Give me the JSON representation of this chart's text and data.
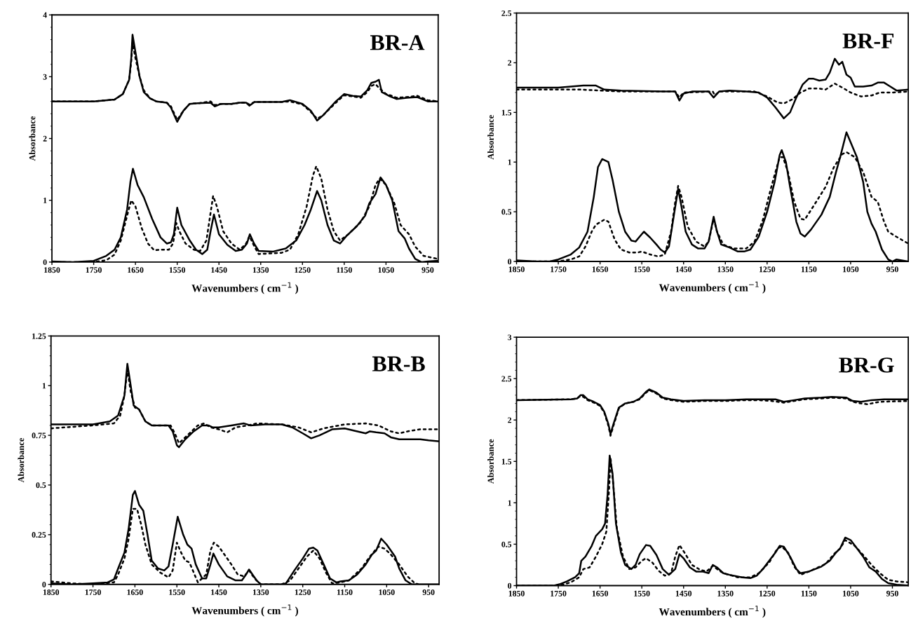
{
  "chart_data": [
    {
      "type": "line",
      "title": "BR-A",
      "xlabel": "Wavenumbers ( cm$^{−1}$ )",
      "ylabel": "Absorbance",
      "xlim": [
        1850,
        925
      ],
      "xticks": [
        1850,
        1750,
        1650,
        1550,
        1450,
        1350,
        1250,
        1150,
        1050,
        950
      ],
      "ylim": [
        0,
        4
      ],
      "yticks": [
        0,
        1,
        2,
        3,
        4
      ],
      "series": [
        {
          "color": "#000000",
          "line_style": "solid",
          "x": [
            1850,
            1750,
            1700,
            1680,
            1665,
            1660,
            1657,
            1650,
            1640,
            1630,
            1615,
            1600,
            1575,
            1565,
            1550,
            1535,
            1520,
            1500,
            1470,
            1460,
            1445,
            1420,
            1400,
            1385,
            1377,
            1365,
            1300,
            1280,
            1250,
            1230,
            1215,
            1200,
            1170,
            1150,
            1130,
            1110,
            1095,
            1085,
            1075,
            1067,
            1060,
            1040,
            1025,
            1000,
            975,
            950,
            925
          ],
          "values": [
            2.6,
            2.6,
            2.63,
            2.72,
            2.95,
            3.3,
            3.68,
            3.4,
            3.0,
            2.75,
            2.65,
            2.6,
            2.58,
            2.5,
            2.27,
            2.45,
            2.56,
            2.57,
            2.58,
            2.52,
            2.56,
            2.56,
            2.58,
            2.58,
            2.53,
            2.59,
            2.59,
            2.62,
            2.56,
            2.45,
            2.29,
            2.38,
            2.6,
            2.72,
            2.69,
            2.68,
            2.78,
            2.9,
            2.92,
            2.95,
            2.75,
            2.68,
            2.64,
            2.66,
            2.67,
            2.6,
            2.6
          ]
        },
        {
          "color": "#000000",
          "line_style": "dotted",
          "x": [
            1850,
            1750,
            1700,
            1680,
            1665,
            1660,
            1657,
            1650,
            1640,
            1630,
            1615,
            1600,
            1575,
            1565,
            1550,
            1535,
            1520,
            1500,
            1470,
            1460,
            1445,
            1420,
            1400,
            1385,
            1377,
            1365,
            1300,
            1280,
            1250,
            1230,
            1215,
            1200,
            1170,
            1150,
            1130,
            1110,
            1095,
            1085,
            1075,
            1067,
            1050,
            1040,
            1025,
            1000,
            975,
            950,
            925
          ],
          "values": [
            2.6,
            2.6,
            2.63,
            2.72,
            2.95,
            3.25,
            3.55,
            3.3,
            3.0,
            2.78,
            2.65,
            2.6,
            2.58,
            2.52,
            2.3,
            2.45,
            2.56,
            2.57,
            2.6,
            2.54,
            2.56,
            2.56,
            2.58,
            2.58,
            2.55,
            2.59,
            2.59,
            2.6,
            2.55,
            2.43,
            2.32,
            2.38,
            2.58,
            2.7,
            2.68,
            2.66,
            2.75,
            2.85,
            2.88,
            2.82,
            2.72,
            2.7,
            2.66,
            2.67,
            2.69,
            2.62,
            2.6
          ]
        },
        {
          "color": "#000000",
          "line_style": "solid",
          "x": [
            1850,
            1800,
            1750,
            1720,
            1700,
            1685,
            1670,
            1662,
            1656,
            1645,
            1630,
            1610,
            1590,
            1575,
            1565,
            1558,
            1550,
            1540,
            1520,
            1505,
            1490,
            1478,
            1470,
            1462,
            1450,
            1430,
            1410,
            1395,
            1383,
            1376,
            1366,
            1355,
            1320,
            1290,
            1265,
            1245,
            1230,
            1215,
            1205,
            1190,
            1175,
            1160,
            1145,
            1120,
            1100,
            1090,
            1075,
            1063,
            1050,
            1035,
            1020,
            1005,
            995,
            980,
            965,
            950,
            925
          ],
          "values": [
            0.01,
            0,
            0.02,
            0.1,
            0.2,
            0.4,
            0.85,
            1.3,
            1.51,
            1.25,
            1.05,
            0.7,
            0.4,
            0.3,
            0.32,
            0.45,
            0.88,
            0.6,
            0.35,
            0.2,
            0.13,
            0.2,
            0.5,
            0.77,
            0.45,
            0.28,
            0.18,
            0.2,
            0.3,
            0.45,
            0.3,
            0.18,
            0.17,
            0.22,
            0.35,
            0.6,
            0.85,
            1.15,
            1.0,
            0.6,
            0.35,
            0.3,
            0.42,
            0.58,
            0.75,
            0.95,
            1.1,
            1.37,
            1.25,
            1.0,
            0.5,
            0.38,
            0.22,
            0.05,
            0,
            0.01,
            0.02
          ]
        },
        {
          "color": "#000000",
          "line_style": "dotted",
          "x": [
            1850,
            1750,
            1720,
            1700,
            1685,
            1670,
            1660,
            1650,
            1635,
            1620,
            1605,
            1590,
            1570,
            1560,
            1552,
            1545,
            1530,
            1510,
            1495,
            1480,
            1470,
            1464,
            1455,
            1440,
            1420,
            1400,
            1385,
            1377,
            1365,
            1355,
            1300,
            1280,
            1260,
            1240,
            1225,
            1217,
            1205,
            1190,
            1175,
            1160,
            1140,
            1110,
            1090,
            1075,
            1065,
            1050,
            1030,
            1015,
            995,
            980,
            960,
            925
          ],
          "values": [
            0,
            0,
            0.03,
            0.12,
            0.35,
            0.75,
            1.0,
            0.9,
            0.55,
            0.3,
            0.19,
            0.2,
            0.2,
            0.3,
            0.63,
            0.5,
            0.3,
            0.2,
            0.18,
            0.35,
            0.8,
            1.07,
            0.9,
            0.5,
            0.3,
            0.2,
            0.3,
            0.42,
            0.25,
            0.13,
            0.15,
            0.2,
            0.45,
            0.9,
            1.4,
            1.55,
            1.35,
            0.85,
            0.5,
            0.35,
            0.45,
            0.65,
            0.9,
            1.25,
            1.35,
            1.25,
            0.95,
            0.6,
            0.45,
            0.25,
            0.1,
            0.05
          ]
        }
      ]
    },
    {
      "type": "line",
      "title": "BR-F",
      "xlabel": "Wavenumbers ( cm$^{−1}$ )",
      "ylabel": "Absorbance",
      "xlim": [
        1850,
        912
      ],
      "xticks": [
        1850,
        1750,
        1650,
        1550,
        1450,
        1350,
        1250,
        1150,
        1050,
        950
      ],
      "ylim": [
        0,
        2.5
      ],
      "yticks": [
        0,
        0.5,
        1,
        1.5,
        2,
        2.5
      ],
      "series": [
        {
          "color": "#000000",
          "line_style": "solid",
          "x": [
            1850,
            1750,
            1720,
            1690,
            1660,
            1640,
            1600,
            1500,
            1470,
            1460,
            1450,
            1430,
            1390,
            1378,
            1365,
            1340,
            1300,
            1270,
            1250,
            1230,
            1210,
            1195,
            1180,
            1165,
            1150,
            1140,
            1125,
            1110,
            1100,
            1088,
            1078,
            1070,
            1060,
            1050,
            1040,
            1020,
            1000,
            985,
            970,
            955,
            940,
            912
          ],
          "values": [
            1.75,
            1.75,
            1.76,
            1.77,
            1.77,
            1.73,
            1.72,
            1.71,
            1.71,
            1.62,
            1.69,
            1.71,
            1.71,
            1.65,
            1.71,
            1.72,
            1.71,
            1.7,
            1.65,
            1.55,
            1.44,
            1.5,
            1.65,
            1.78,
            1.84,
            1.84,
            1.82,
            1.83,
            1.9,
            2.04,
            1.98,
            2.01,
            1.88,
            1.85,
            1.76,
            1.76,
            1.77,
            1.8,
            1.8,
            1.76,
            1.72,
            1.73
          ]
        },
        {
          "color": "#000000",
          "line_style": "dotted",
          "x": [
            1850,
            1700,
            1650,
            1600,
            1470,
            1460,
            1450,
            1380,
            1375,
            1365,
            1280,
            1250,
            1225,
            1210,
            1190,
            1170,
            1150,
            1125,
            1110,
            1088,
            1070,
            1050,
            1025,
            1000,
            980,
            950,
            912
          ],
          "values": [
            1.73,
            1.73,
            1.72,
            1.71,
            1.71,
            1.65,
            1.7,
            1.71,
            1.67,
            1.71,
            1.71,
            1.66,
            1.6,
            1.59,
            1.63,
            1.7,
            1.74,
            1.74,
            1.73,
            1.79,
            1.75,
            1.7,
            1.66,
            1.67,
            1.7,
            1.7,
            1.71
          ]
        },
        {
          "color": "#000000",
          "line_style": "solid",
          "x": [
            1850,
            1800,
            1770,
            1750,
            1720,
            1700,
            1680,
            1665,
            1655,
            1645,
            1630,
            1620,
            1605,
            1590,
            1575,
            1565,
            1555,
            1545,
            1530,
            1515,
            1505,
            1495,
            1485,
            1470,
            1463,
            1455,
            1445,
            1430,
            1415,
            1400,
            1390,
            1378,
            1370,
            1360,
            1340,
            1320,
            1305,
            1290,
            1270,
            1250,
            1232,
            1220,
            1215,
            1205,
            1195,
            1180,
            1170,
            1160,
            1145,
            1120,
            1100,
            1085,
            1075,
            1060,
            1050,
            1035,
            1020,
            1010,
            1000,
            990,
            975,
            960,
            950,
            940,
            912
          ],
          "values": [
            0.01,
            0,
            0,
            0.02,
            0.07,
            0.14,
            0.3,
            0.65,
            0.95,
            1.03,
            1.0,
            0.82,
            0.5,
            0.3,
            0.21,
            0.2,
            0.25,
            0.3,
            0.24,
            0.17,
            0.12,
            0.09,
            0.15,
            0.55,
            0.73,
            0.55,
            0.3,
            0.17,
            0.13,
            0.13,
            0.2,
            0.45,
            0.3,
            0.17,
            0.14,
            0.1,
            0.1,
            0.12,
            0.25,
            0.5,
            0.8,
            1.07,
            1.12,
            1.0,
            0.75,
            0.4,
            0.28,
            0.25,
            0.32,
            0.47,
            0.65,
            0.9,
            1.05,
            1.3,
            1.2,
            1.05,
            0.8,
            0.5,
            0.38,
            0.3,
            0.12,
            0.02,
            0,
            0.02,
            0
          ]
        },
        {
          "color": "#000000",
          "line_style": "dotted",
          "x": [
            1850,
            1750,
            1720,
            1700,
            1685,
            1670,
            1660,
            1640,
            1630,
            1615,
            1600,
            1580,
            1560,
            1550,
            1530,
            1510,
            1495,
            1480,
            1470,
            1463,
            1455,
            1440,
            1420,
            1400,
            1390,
            1378,
            1370,
            1355,
            1330,
            1300,
            1280,
            1260,
            1240,
            1220,
            1212,
            1200,
            1185,
            1170,
            1160,
            1140,
            1110,
            1090,
            1070,
            1060,
            1040,
            1020,
            1000,
            985,
            970,
            960,
            945,
            912
          ],
          "values": [
            0,
            0,
            0.02,
            0.05,
            0.15,
            0.3,
            0.37,
            0.42,
            0.4,
            0.22,
            0.12,
            0.09,
            0.09,
            0.1,
            0.07,
            0.05,
            0.07,
            0.3,
            0.6,
            0.76,
            0.65,
            0.35,
            0.2,
            0.15,
            0.2,
            0.43,
            0.3,
            0.17,
            0.13,
            0.13,
            0.2,
            0.42,
            0.75,
            1.05,
            1.05,
            0.9,
            0.6,
            0.43,
            0.42,
            0.55,
            0.75,
            0.95,
            1.08,
            1.1,
            1.05,
            0.9,
            0.65,
            0.6,
            0.4,
            0.3,
            0.26,
            0.18
          ]
        }
      ]
    },
    {
      "type": "line",
      "title": "BR-B",
      "xlabel": "Wavenumbers ( cm$^{−1}$ )",
      "ylabel": "Absorbance",
      "xlim": [
        1850,
        925
      ],
      "xticks": [
        1850,
        1750,
        1650,
        1550,
        1450,
        1350,
        1250,
        1150,
        1050,
        950
      ],
      "ylim": [
        0,
        1.25
      ],
      "yticks": [
        0,
        0.25,
        0.5,
        0.75,
        1,
        1.25
      ],
      "series": [
        {
          "color": "#000000",
          "line_style": "solid",
          "x": [
            1850,
            1750,
            1710,
            1690,
            1675,
            1668,
            1660,
            1653,
            1640,
            1625,
            1610,
            1570,
            1560,
            1550,
            1545,
            1530,
            1510,
            1490,
            1475,
            1465,
            1450,
            1420,
            1390,
            1375,
            1340,
            1300,
            1275,
            1250,
            1230,
            1210,
            1180,
            1150,
            1120,
            1100,
            1090,
            1075,
            1055,
            1040,
            1020,
            1000,
            970,
            950,
            925
          ],
          "values": [
            0.805,
            0.805,
            0.82,
            0.85,
            0.95,
            1.11,
            1.0,
            0.9,
            0.88,
            0.82,
            0.8,
            0.8,
            0.77,
            0.7,
            0.69,
            0.73,
            0.77,
            0.8,
            0.8,
            0.79,
            0.79,
            0.8,
            0.81,
            0.8,
            0.805,
            0.805,
            0.79,
            0.76,
            0.735,
            0.75,
            0.78,
            0.785,
            0.77,
            0.76,
            0.77,
            0.765,
            0.76,
            0.74,
            0.73,
            0.73,
            0.73,
            0.725,
            0.72
          ]
        },
        {
          "color": "#000000",
          "line_style": "dotted",
          "x": [
            1850,
            1750,
            1700,
            1685,
            1675,
            1668,
            1660,
            1650,
            1640,
            1625,
            1610,
            1565,
            1555,
            1545,
            1530,
            1500,
            1485,
            1470,
            1450,
            1430,
            1410,
            1380,
            1360,
            1300,
            1260,
            1230,
            1200,
            1150,
            1100,
            1070,
            1040,
            1020,
            1000,
            970,
            925
          ],
          "values": [
            0.785,
            0.8,
            0.81,
            0.85,
            0.95,
            1.08,
            0.97,
            0.89,
            0.88,
            0.82,
            0.8,
            0.8,
            0.76,
            0.71,
            0.74,
            0.8,
            0.81,
            0.79,
            0.78,
            0.765,
            0.79,
            0.8,
            0.81,
            0.805,
            0.79,
            0.765,
            0.785,
            0.805,
            0.81,
            0.8,
            0.77,
            0.76,
            0.77,
            0.78,
            0.78
          ]
        },
        {
          "color": "#000000",
          "line_style": "solid",
          "x": [
            1850,
            1800,
            1750,
            1715,
            1700,
            1690,
            1675,
            1665,
            1655,
            1650,
            1640,
            1630,
            1620,
            1610,
            1595,
            1580,
            1570,
            1560,
            1548,
            1535,
            1525,
            1515,
            1505,
            1490,
            1480,
            1470,
            1463,
            1450,
            1430,
            1410,
            1395,
            1385,
            1378,
            1370,
            1360,
            1350,
            1300,
            1290,
            1270,
            1250,
            1235,
            1225,
            1215,
            1200,
            1185,
            1170,
            1160,
            1140,
            1120,
            1100,
            1085,
            1075,
            1063,
            1050,
            1030,
            1020,
            1005,
            990,
            925
          ],
          "values": [
            0.005,
            0,
            0.005,
            0.01,
            0.025,
            0.08,
            0.16,
            0.28,
            0.45,
            0.47,
            0.4,
            0.37,
            0.25,
            0.12,
            0.08,
            0.07,
            0.09,
            0.2,
            0.34,
            0.25,
            0.2,
            0.18,
            0.1,
            0.03,
            0.03,
            0.1,
            0.155,
            0.1,
            0.04,
            0.02,
            0.02,
            0.05,
            0.075,
            0.05,
            0.02,
            0,
            0,
            0.005,
            0.07,
            0.13,
            0.18,
            0.185,
            0.17,
            0.1,
            0.03,
            0.01,
            0.015,
            0.02,
            0.05,
            0.1,
            0.15,
            0.17,
            0.23,
            0.2,
            0.14,
            0.08,
            0.02,
            0,
            0
          ]
        },
        {
          "color": "#000000",
          "line_style": "dotted",
          "x": [
            1850,
            1800,
            1750,
            1700,
            1690,
            1675,
            1665,
            1655,
            1645,
            1635,
            1625,
            1610,
            1590,
            1570,
            1560,
            1550,
            1540,
            1530,
            1520,
            1510,
            1500,
            1480,
            1470,
            1462,
            1450,
            1440,
            1420,
            1405,
            1390,
            1378,
            1365,
            1350,
            1300,
            1280,
            1260,
            1240,
            1225,
            1210,
            1195,
            1180,
            1160,
            1140,
            1110,
            1090,
            1070,
            1055,
            1040,
            1020,
            1000,
            985,
            975
          ],
          "values": [
            0.015,
            0.005,
            0,
            0.01,
            0.05,
            0.13,
            0.23,
            0.38,
            0.38,
            0.3,
            0.2,
            0.1,
            0.06,
            0.035,
            0.07,
            0.21,
            0.16,
            0.12,
            0.11,
            0.06,
            0.01,
            0.05,
            0.17,
            0.21,
            0.19,
            0.16,
            0.1,
            0.05,
            0.04,
            0.07,
            0.03,
            0,
            0,
            0.02,
            0.08,
            0.14,
            0.17,
            0.13,
            0.06,
            0.005,
            0.01,
            0.02,
            0.08,
            0.14,
            0.19,
            0.18,
            0.15,
            0.1,
            0.04,
            0.01,
            0
          ]
        }
      ]
    },
    {
      "type": "line",
      "title": "BR-G",
      "xlabel": "Wavenumbers ( cm$^{−1}$ )",
      "ylabel": "Absorbance",
      "xlim": [
        1850,
        912
      ],
      "xticks": [
        1850,
        1750,
        1650,
        1550,
        1450,
        1350,
        1250,
        1150,
        1050,
        950
      ],
      "ylim": [
        0,
        3
      ],
      "yticks": [
        0,
        0.5,
        1,
        1.5,
        2,
        2.5,
        3
      ],
      "series": [
        {
          "color": "#000000",
          "line_style": "solid",
          "x": [
            1850,
            1720,
            1705,
            1697,
            1690,
            1680,
            1665,
            1650,
            1640,
            1630,
            1625,
            1618,
            1605,
            1590,
            1570,
            1555,
            1540,
            1532,
            1515,
            1500,
            1480,
            1450,
            1400,
            1350,
            1300,
            1250,
            1230,
            1210,
            1185,
            1160,
            1120,
            1095,
            1060,
            1045,
            1025,
            1000,
            970,
            912
          ],
          "values": [
            2.24,
            2.25,
            2.26,
            2.3,
            2.3,
            2.25,
            2.22,
            2.18,
            2.1,
            1.95,
            1.83,
            1.95,
            2.15,
            2.2,
            2.22,
            2.26,
            2.34,
            2.37,
            2.33,
            2.27,
            2.25,
            2.23,
            2.24,
            2.24,
            2.25,
            2.25,
            2.25,
            2.22,
            2.24,
            2.26,
            2.27,
            2.28,
            2.27,
            2.23,
            2.22,
            2.24,
            2.25,
            2.25
          ]
        },
        {
          "color": "#000000",
          "line_style": "dotted",
          "x": [
            1850,
            1720,
            1705,
            1697,
            1690,
            1680,
            1665,
            1650,
            1640,
            1630,
            1625,
            1618,
            1605,
            1590,
            1570,
            1555,
            1540,
            1532,
            1515,
            1500,
            1480,
            1450,
            1400,
            1350,
            1300,
            1270,
            1240,
            1210,
            1185,
            1160,
            1120,
            1095,
            1060,
            1045,
            1025,
            1010,
            980,
            912
          ],
          "values": [
            2.24,
            2.25,
            2.26,
            2.29,
            2.28,
            2.24,
            2.21,
            2.17,
            2.09,
            1.93,
            1.81,
            1.93,
            2.14,
            2.2,
            2.22,
            2.25,
            2.33,
            2.36,
            2.32,
            2.26,
            2.24,
            2.22,
            2.23,
            2.23,
            2.24,
            2.24,
            2.23,
            2.21,
            2.23,
            2.25,
            2.26,
            2.27,
            2.26,
            2.22,
            2.2,
            2.19,
            2.22,
            2.23
          ]
        },
        {
          "color": "#000000",
          "line_style": "solid",
          "x": [
            1850,
            1800,
            1760,
            1745,
            1730,
            1710,
            1700,
            1695,
            1685,
            1670,
            1660,
            1645,
            1638,
            1632,
            1627,
            1620,
            1612,
            1600,
            1590,
            1575,
            1565,
            1555,
            1540,
            1530,
            1515,
            1500,
            1485,
            1470,
            1460,
            1450,
            1435,
            1420,
            1405,
            1390,
            1380,
            1370,
            1355,
            1340,
            1310,
            1290,
            1275,
            1260,
            1245,
            1230,
            1220,
            1210,
            1195,
            1180,
            1170,
            1150,
            1120,
            1100,
            1085,
            1075,
            1063,
            1050,
            1035,
            1020,
            1005,
            990,
            975,
            960,
            940,
            912
          ],
          "values": [
            0,
            0,
            0,
            0.02,
            0.05,
            0.1,
            0.15,
            0.3,
            0.35,
            0.48,
            0.6,
            0.68,
            0.75,
            1.1,
            1.57,
            1.35,
            0.75,
            0.4,
            0.25,
            0.2,
            0.25,
            0.38,
            0.49,
            0.48,
            0.37,
            0.2,
            0.13,
            0.2,
            0.38,
            0.33,
            0.22,
            0.17,
            0.17,
            0.15,
            0.25,
            0.22,
            0.15,
            0.13,
            0.1,
            0.09,
            0.12,
            0.2,
            0.3,
            0.4,
            0.48,
            0.47,
            0.35,
            0.2,
            0.15,
            0.17,
            0.23,
            0.3,
            0.4,
            0.45,
            0.58,
            0.55,
            0.45,
            0.35,
            0.22,
            0.17,
            0.08,
            0.03,
            0.01,
            0
          ]
        },
        {
          "color": "#000000",
          "line_style": "dotted",
          "x": [
            1850,
            1760,
            1740,
            1720,
            1700,
            1690,
            1675,
            1660,
            1645,
            1635,
            1628,
            1625,
            1618,
            1610,
            1595,
            1580,
            1565,
            1550,
            1540,
            1525,
            1510,
            1495,
            1480,
            1470,
            1460,
            1448,
            1430,
            1410,
            1395,
            1380,
            1370,
            1355,
            1320,
            1290,
            1270,
            1245,
            1225,
            1215,
            1200,
            1185,
            1170,
            1150,
            1110,
            1090,
            1075,
            1063,
            1040,
            1020,
            1000,
            980,
            960,
            940,
            912
          ],
          "values": [
            0,
            0,
            0.01,
            0.04,
            0.1,
            0.2,
            0.22,
            0.35,
            0.5,
            0.65,
            1.2,
            1.55,
            1.2,
            0.7,
            0.35,
            0.2,
            0.22,
            0.3,
            0.33,
            0.28,
            0.18,
            0.12,
            0.15,
            0.35,
            0.49,
            0.4,
            0.25,
            0.19,
            0.17,
            0.24,
            0.2,
            0.15,
            0.1,
            0.1,
            0.15,
            0.28,
            0.45,
            0.47,
            0.4,
            0.23,
            0.13,
            0.17,
            0.26,
            0.38,
            0.45,
            0.55,
            0.48,
            0.37,
            0.25,
            0.15,
            0.07,
            0.05,
            0.04
          ]
        }
      ]
    }
  ]
}
